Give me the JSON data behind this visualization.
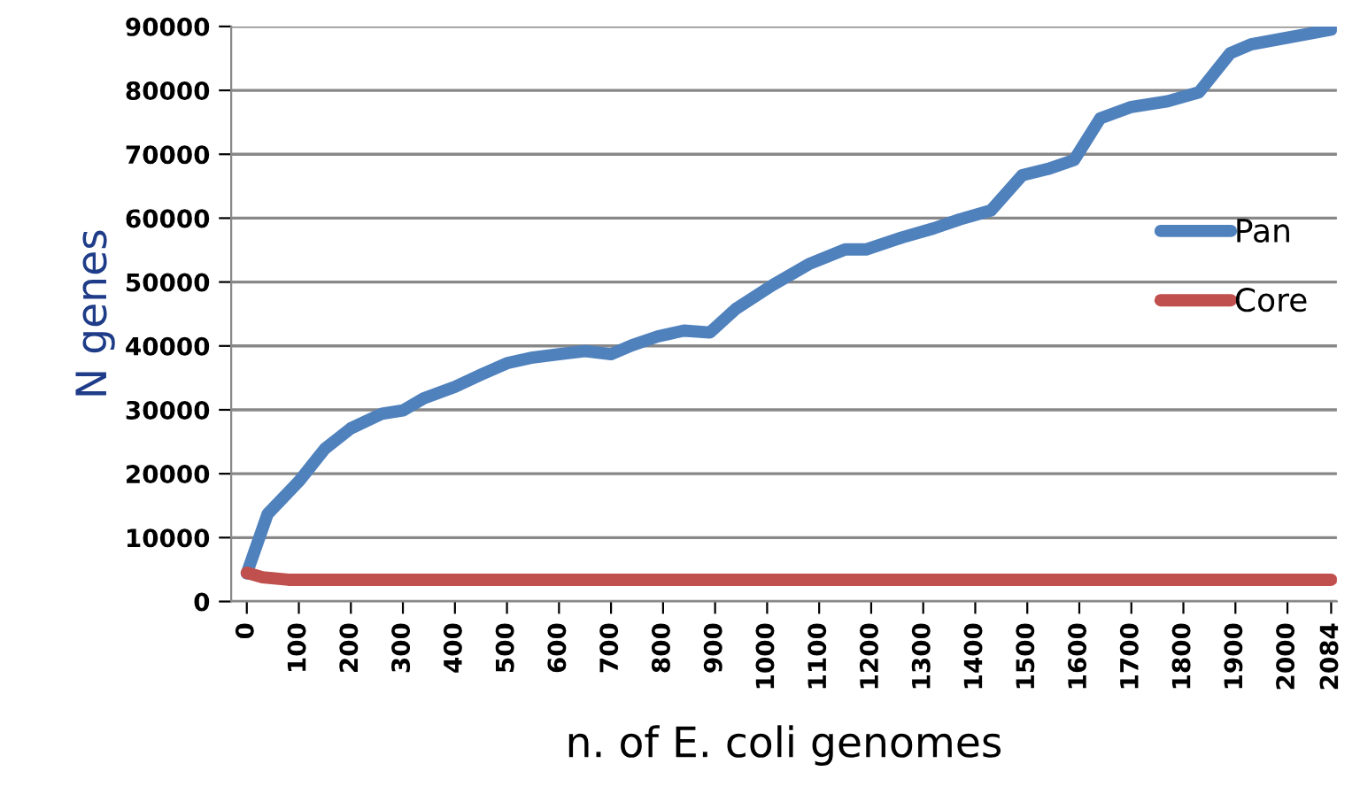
{
  "chart_data": {
    "type": "line",
    "xlabel": "n. of E. coli genomes",
    "ylabel": "N genes",
    "xlim": [
      -30,
      2095
    ],
    "xticks": [
      0,
      100,
      200,
      300,
      400,
      500,
      600,
      700,
      800,
      900,
      1000,
      1100,
      1200,
      1300,
      1400,
      1500,
      1600,
      1700,
      1800,
      1900,
      2000,
      2084
    ],
    "ylim": [
      0,
      90000
    ],
    "yticks": [
      0,
      10000,
      20000,
      30000,
      40000,
      50000,
      60000,
      70000,
      80000,
      90000
    ],
    "grid": "y",
    "legend": "right",
    "marker": "none",
    "line_style": "solid",
    "series": [
      {
        "name": "Pan",
        "color": "#4f81bd",
        "x": [
          0,
          40,
          100,
          150,
          200,
          260,
          300,
          340,
          400,
          450,
          500,
          550,
          600,
          650,
          700,
          740,
          790,
          840,
          890,
          940,
          1010,
          1080,
          1150,
          1190,
          1260,
          1320,
          1370,
          1430,
          1490,
          1540,
          1590,
          1640,
          1700,
          1770,
          1830,
          1890,
          1930,
          1990,
          2084
        ],
        "values": [
          4400,
          13700,
          18800,
          23900,
          27100,
          29400,
          29900,
          31800,
          33600,
          35500,
          37300,
          38200,
          38700,
          39200,
          38700,
          40100,
          41500,
          42400,
          42100,
          45800,
          49500,
          52800,
          55100,
          55100,
          57000,
          58400,
          59800,
          61200,
          66700,
          67700,
          69100,
          75600,
          77400,
          78300,
          79700,
          85800,
          87200,
          88100,
          89500
        ]
      },
      {
        "name": "Core",
        "color": "#c0504d",
        "x": [
          0,
          30,
          80,
          2084
        ],
        "values": [
          4500,
          3800,
          3400,
          3400
        ]
      }
    ]
  }
}
